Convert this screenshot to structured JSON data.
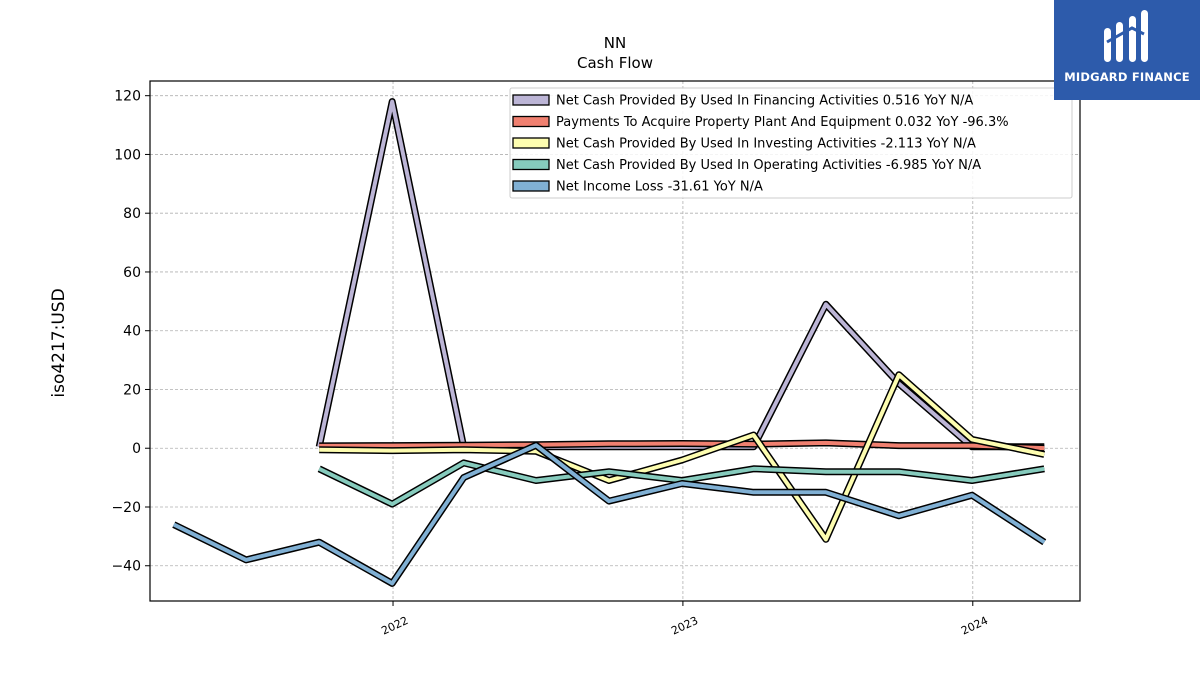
{
  "brand": {
    "name": "MIDGARD FINANCE",
    "icon": "midgard-logo-icon",
    "color": "#2d5bab"
  },
  "chart_data": {
    "type": "line",
    "title": "NN",
    "subtitle": "Cash Flow",
    "ylabel": "iso4217:USD",
    "xlabel": "",
    "ylim": [
      -52,
      125
    ],
    "xlim": [
      "2021-03-01",
      "2024-05-15"
    ],
    "yticks": [
      120,
      100,
      80,
      60,
      40,
      20,
      0,
      -20,
      -40
    ],
    "ytick_labels": [
      "120",
      "100",
      "80",
      "60",
      "40",
      "20",
      "0",
      "−20",
      "−40"
    ],
    "xticks": [
      "2022-01-01",
      "2023-01-01",
      "2024-01-01"
    ],
    "xtick_labels": [
      "2022",
      "2023",
      "2024"
    ],
    "grid": true,
    "legend_position": "top-right",
    "series": [
      {
        "name": "Net Cash Provided By Used In Financing Activities  0.516 YoY N/A",
        "color": "#bcb5d6",
        "x": [
          "2021-09-30",
          "2021-12-31",
          "2022-03-31",
          "2022-06-30",
          "2022-09-30",
          "2022-12-31",
          "2023-03-31",
          "2023-06-30",
          "2023-09-30",
          "2023-12-31",
          "2024-03-31"
        ],
        "y": [
          0.5,
          118,
          0.5,
          0.5,
          0.5,
          0.5,
          0.5,
          49,
          22,
          0.5,
          0.5
        ]
      },
      {
        "name": "Payments To Acquire Property Plant And Equipment  0.032 YoY -96.3%",
        "color": "#f08070",
        "x": [
          "2021-09-30",
          "2021-12-31",
          "2022-03-31",
          "2022-06-30",
          "2022-09-30",
          "2022-12-31",
          "2023-03-31",
          "2023-06-30",
          "2023-09-30",
          "2023-12-31",
          "2024-03-31"
        ],
        "y": [
          0.8,
          0.9,
          1.0,
          1.2,
          1.5,
          1.6,
          1.4,
          1.8,
          0.9,
          0.9,
          0.03
        ]
      },
      {
        "name": "Net Cash Provided By Used In Investing Activities  -2.113 YoY N/A",
        "color": "#fdfdb0",
        "x": [
          "2021-09-30",
          "2021-12-31",
          "2022-03-31",
          "2022-06-30",
          "2022-09-30",
          "2022-12-31",
          "2023-03-31",
          "2023-06-30",
          "2023-09-30",
          "2023-12-31",
          "2024-03-31"
        ],
        "y": [
          -0.5,
          -0.8,
          -0.5,
          -1.0,
          -11,
          -4,
          4.5,
          -31,
          25,
          3,
          -2.1
        ]
      },
      {
        "name": "Net Cash Provided By Used In Operating Activities  -6.985 YoY N/A",
        "color": "#86cbbd",
        "x": [
          "2021-09-30",
          "2021-12-31",
          "2022-03-31",
          "2022-06-30",
          "2022-09-30",
          "2022-12-31",
          "2023-03-31",
          "2023-06-30",
          "2023-09-30",
          "2023-12-31",
          "2024-03-31"
        ],
        "y": [
          -7,
          -19,
          -5,
          -11,
          -8,
          -11,
          -7,
          -8,
          -8,
          -11,
          -7
        ]
      },
      {
        "name": "Net Income Loss  -31.61 YoY N/A",
        "color": "#80b0d4",
        "x": [
          "2021-03-31",
          "2021-06-30",
          "2021-09-30",
          "2021-12-31",
          "2022-03-31",
          "2022-06-30",
          "2022-09-30",
          "2022-12-31",
          "2023-03-31",
          "2023-06-30",
          "2023-09-30",
          "2023-12-31",
          "2024-03-31"
        ],
        "y": [
          -26,
          -38,
          -32,
          -46,
          -10,
          1,
          -18,
          -12,
          -15,
          -15,
          -23,
          -16,
          -32
        ]
      }
    ]
  }
}
